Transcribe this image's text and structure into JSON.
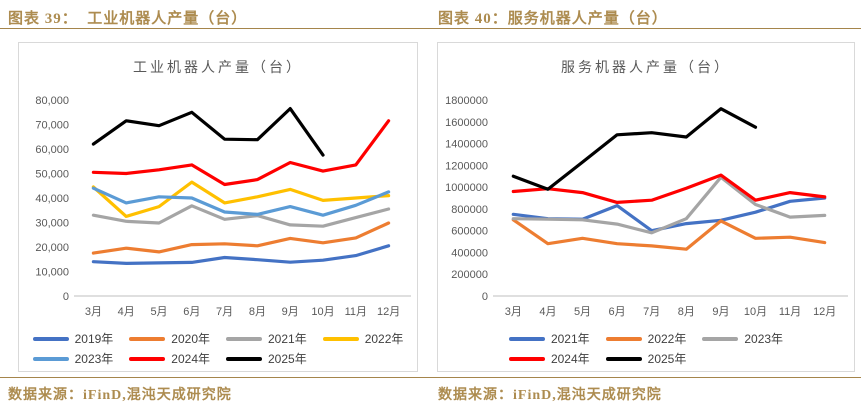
{
  "colors": {
    "accent_gold_text": "#ad8c50",
    "accent_gold_rule": "#a5854b",
    "card_border": "#d9d9d9",
    "axis_text": "#595959",
    "axis_line": "#bfbfbf"
  },
  "panels": [
    {
      "heading": "图表 39：  工业机器人产量（台）",
      "source": "数据来源：iFinD,混沌天成研究院"
    },
    {
      "heading": "图表 40：服务机器人产量（台）",
      "source": "数据来源：iFinD,混沌天成研究院"
    }
  ],
  "chart_data": [
    {
      "type": "line",
      "title": "工业机器人产量（台）",
      "categories": [
        "3月",
        "4月",
        "5月",
        "6月",
        "7月",
        "8月",
        "9月",
        "10月",
        "11月",
        "12月"
      ],
      "ylim": [
        0,
        80000
      ],
      "ytick_step": 10000,
      "ytick_labels": [
        "0",
        "10,000",
        "20,000",
        "30,000",
        "40,000",
        "50,000",
        "60,000",
        "70,000",
        "80,000"
      ],
      "grid": false,
      "legend_position": "bottom",
      "legend_per_row": 4,
      "series": [
        {
          "name": "2019年",
          "color": "#4472C4",
          "values": [
            14000,
            13300,
            13500,
            13700,
            15700,
            14800,
            13800,
            14600,
            16500,
            20500
          ]
        },
        {
          "name": "2020年",
          "color": "#ED7D31",
          "values": [
            17500,
            19500,
            18000,
            21000,
            21300,
            20500,
            23500,
            21700,
            23700,
            29800
          ]
        },
        {
          "name": "2021年",
          "color": "#A5A5A5",
          "values": [
            33000,
            30500,
            29800,
            36800,
            31300,
            32800,
            29000,
            28500,
            32000,
            35500
          ]
        },
        {
          "name": "2022年",
          "color": "#FFC000",
          "values": [
            44500,
            32500,
            36500,
            46500,
            38000,
            40500,
            43500,
            39000,
            40000,
            41000
          ]
        },
        {
          "name": "2023年",
          "color": "#5B9BD5",
          "values": [
            44000,
            38000,
            40500,
            40000,
            34300,
            33300,
            36500,
            33000,
            37000,
            42500
          ]
        },
        {
          "name": "2024年",
          "color": "#FF0000",
          "values": [
            50500,
            50000,
            51500,
            53500,
            45500,
            47500,
            54500,
            51000,
            53500,
            71500
          ]
        },
        {
          "name": "2025年",
          "color": "#000000",
          "values": [
            62000,
            71500,
            69500,
            75000,
            64000,
            63800,
            76500,
            57500,
            null,
            null
          ]
        }
      ]
    },
    {
      "type": "line",
      "title": "服务机器人产量（台）",
      "categories": [
        "3月",
        "4月",
        "5月",
        "6月",
        "7月",
        "8月",
        "9月",
        "10月",
        "11月",
        "12月"
      ],
      "ylim": [
        0,
        1800000
      ],
      "ytick_step": 200000,
      "ytick_labels": [
        "0",
        "200000",
        "400000",
        "600000",
        "800000",
        "1000000",
        "1200000",
        "1400000",
        "1600000",
        "1800000"
      ],
      "grid": false,
      "legend_position": "bottom",
      "legend_per_row": 3,
      "series": [
        {
          "name": "2021年",
          "color": "#4472C4",
          "values": [
            750000,
            710000,
            705000,
            830000,
            600000,
            665000,
            695000,
            770000,
            870000,
            900000
          ]
        },
        {
          "name": "2022年",
          "color": "#ED7D31",
          "values": [
            700000,
            480000,
            530000,
            480000,
            460000,
            430000,
            690000,
            530000,
            540000,
            490000
          ]
        },
        {
          "name": "2023年",
          "color": "#A5A5A5",
          "values": [
            710000,
            705000,
            700000,
            660000,
            580000,
            710000,
            1090000,
            840000,
            725000,
            740000
          ]
        },
        {
          "name": "2024年",
          "color": "#FF0000",
          "values": [
            960000,
            985000,
            950000,
            860000,
            880000,
            990000,
            1110000,
            880000,
            950000,
            910000
          ]
        },
        {
          "name": "2025年",
          "color": "#000000",
          "values": [
            1100000,
            980000,
            1230000,
            1480000,
            1500000,
            1460000,
            1720000,
            1550000,
            null,
            null
          ]
        }
      ]
    }
  ]
}
